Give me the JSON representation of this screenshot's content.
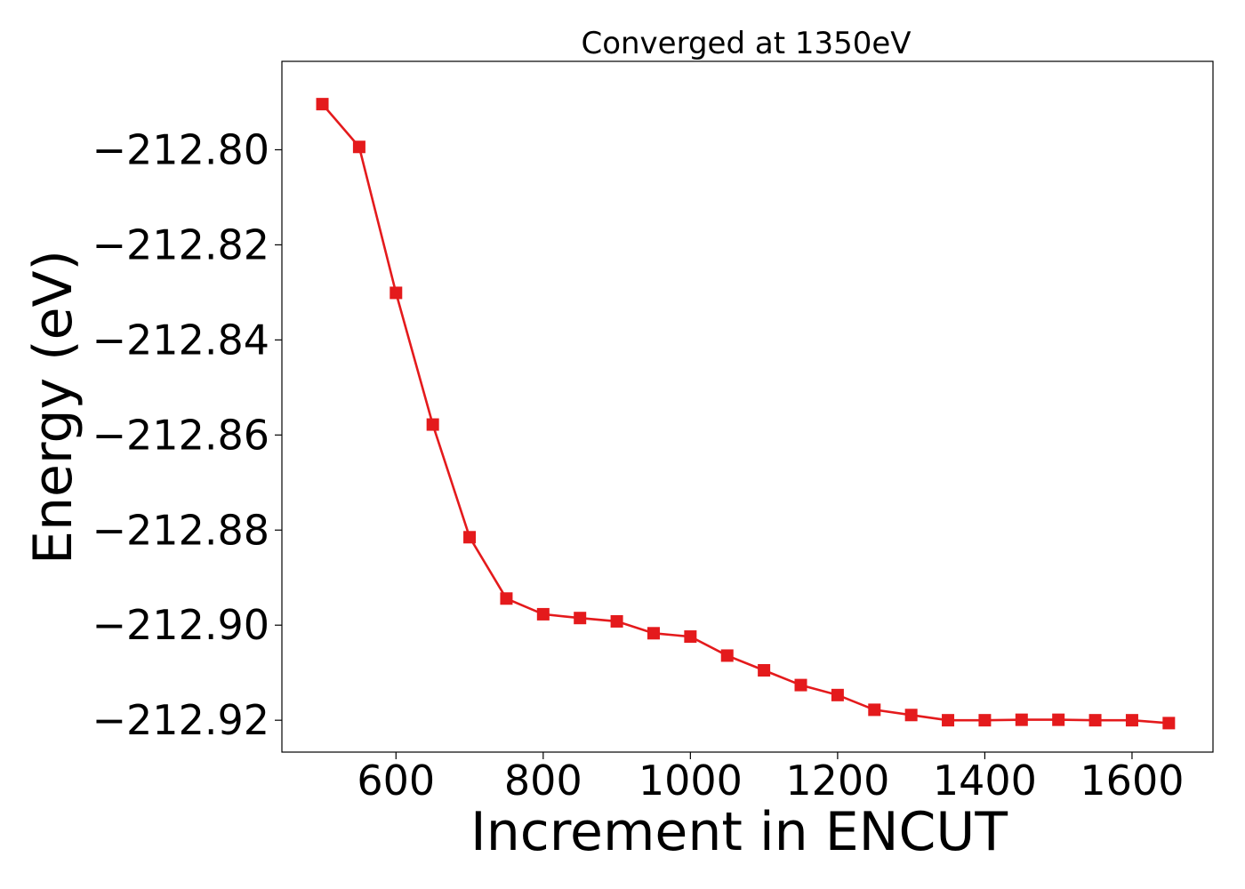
{
  "chart_data": {
    "type": "line",
    "title": "Converged at 1350eV",
    "xlabel": "Increment in ENCUT",
    "ylabel": "Energy (eV)",
    "xlim": [
      445,
      1710
    ],
    "ylim": [
      -212.9267,
      -212.7814
    ],
    "x_ticks": [
      600,
      800,
      1000,
      1200,
      1400,
      1600
    ],
    "y_ticks": [
      -212.8,
      -212.82,
      -212.84,
      -212.86,
      -212.88,
      -212.9,
      -212.92
    ],
    "x_tick_labels": [
      "600",
      "800",
      "1000",
      "1200",
      "1400",
      "1600"
    ],
    "y_tick_labels": [
      "−212.80",
      "−212.82",
      "−212.84",
      "−212.86",
      "−212.88",
      "−212.90",
      "−212.92"
    ],
    "grid": false,
    "series": [
      {
        "color": "#e41a1c",
        "marker": "square",
        "x": [
          500,
          550,
          600,
          650,
          700,
          750,
          800,
          850,
          900,
          950,
          1000,
          1050,
          1100,
          1150,
          1200,
          1250,
          1300,
          1350,
          1400,
          1450,
          1500,
          1550,
          1600,
          1650
        ],
        "y": [
          -212.7904,
          -212.7994,
          -212.8301,
          -212.8578,
          -212.8815,
          -212.8944,
          -212.8977,
          -212.8985,
          -212.8992,
          -212.9017,
          -212.9024,
          -212.9064,
          -212.9095,
          -212.9126,
          -212.9147,
          -212.9178,
          -212.9189,
          -212.92,
          -212.92,
          -212.9199,
          -212.9199,
          -212.92,
          -212.92,
          -212.9206
        ]
      }
    ]
  }
}
